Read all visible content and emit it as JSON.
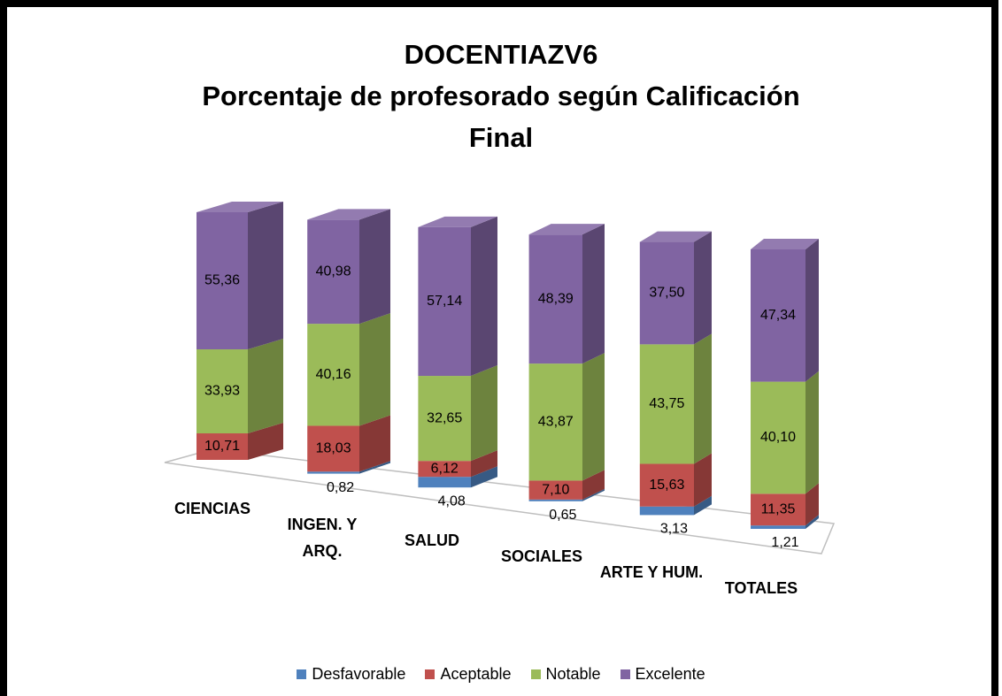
{
  "chart_data": {
    "type": "bar3d_stacked",
    "title": [
      "DOCENTIAZV6",
      "Porcentaje de profesorado según Calificación",
      "Final"
    ],
    "categories": [
      "CIENCIAS",
      "INGEN. Y ARQ.",
      "SALUD",
      "SOCIALES",
      "ARTE Y HUM.",
      "TOTALES"
    ],
    "series": [
      {
        "name": "Desfavorable",
        "color": "#4f81bd",
        "values": [
          0,
          0.82,
          4.08,
          0.65,
          3.13,
          1.21
        ],
        "value_labels": [
          null,
          "0,82",
          "4,08",
          "0,65",
          "3,13",
          "1,21"
        ]
      },
      {
        "name": "Aceptable",
        "color": "#c0504d",
        "values": [
          10.71,
          18.03,
          6.12,
          7.1,
          15.63,
          11.35
        ],
        "value_labels": [
          "10,71",
          "18,03",
          "6,12",
          "7,10",
          "15,63",
          "11,35"
        ]
      },
      {
        "name": "Notable",
        "color": "#9bbb59",
        "values": [
          33.93,
          40.16,
          32.65,
          43.87,
          43.75,
          40.1
        ],
        "value_labels": [
          "33,93",
          "40,16",
          "32,65",
          "43,87",
          "43,75",
          "40,10"
        ]
      },
      {
        "name": "Excelente",
        "color": "#8064a2",
        "values": [
          55.36,
          40.98,
          57.14,
          48.39,
          37.5,
          47.34
        ],
        "value_labels": [
          "55,36",
          "40,98",
          "57,14",
          "48,39",
          "37,50",
          "47,34"
        ]
      }
    ],
    "legend": "bottom"
  }
}
